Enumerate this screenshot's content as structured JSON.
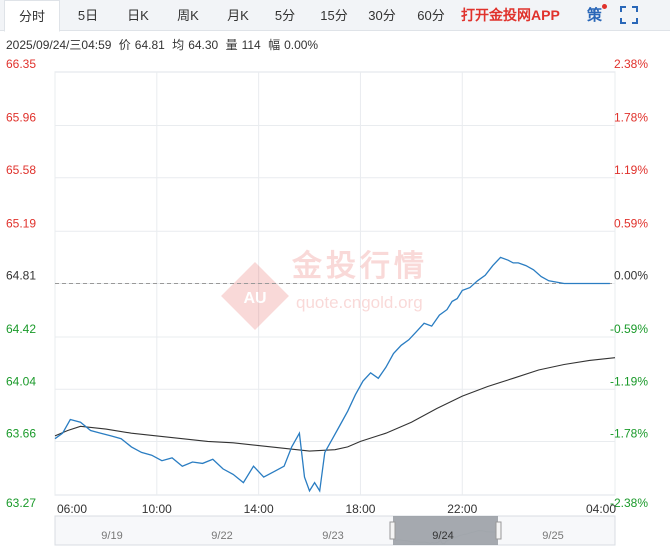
{
  "tabs": [
    {
      "label": "分时",
      "active": true
    },
    {
      "label": "5日",
      "active": false
    },
    {
      "label": "日K",
      "active": false
    },
    {
      "label": "周K",
      "active": false
    },
    {
      "label": "月K",
      "active": false
    },
    {
      "label": "5分",
      "active": false
    },
    {
      "label": "15分",
      "active": false
    },
    {
      "label": "30分",
      "active": false
    },
    {
      "label": "60分",
      "active": false
    }
  ],
  "brand_link": "打开金投网APP",
  "strategy_label": "策",
  "info": {
    "datetime": "2025/09/24/三04:59",
    "price_label": "价",
    "price": "64.81",
    "avg_label": "均",
    "avg": "64.30",
    "volume_label": "量",
    "volume": "114",
    "change_label": "幅",
    "change": "0.00%"
  },
  "watermark": {
    "logo_text": "AU",
    "name": "金投行情",
    "url": "quote.cngold.org"
  },
  "colors": {
    "price_line": "#2a7dc2",
    "avg_line": "#333333",
    "up": "#e0322c",
    "down": "#1a9a2a",
    "neutral": "#333333",
    "grid": "#e9ecef"
  },
  "chart_data": {
    "type": "line",
    "reference_price": 64.81,
    "ylim": [
      63.27,
      66.35
    ],
    "y_ticks_left": [
      "66.35",
      "65.96",
      "65.58",
      "65.19",
      "64.81",
      "64.42",
      "64.04",
      "63.66",
      "63.27"
    ],
    "y_ticks_right": [
      "2.38%",
      "1.78%",
      "1.19%",
      "0.59%",
      "0.00%",
      "-0.59%",
      "-1.19%",
      "-1.78%",
      "-2.38%"
    ],
    "xlim": [
      6,
      28
    ],
    "x_ticks": [
      "06:00",
      "10:00",
      "14:00",
      "18:00",
      "22:00",
      "04:00"
    ],
    "series": [
      {
        "role": "price",
        "x": [
          6.0,
          6.3,
          6.6,
          7.0,
          7.4,
          7.8,
          8.2,
          8.6,
          9.0,
          9.4,
          9.8,
          10.2,
          10.6,
          11.0,
          11.4,
          11.8,
          12.2,
          12.6,
          13.0,
          13.4,
          13.8,
          14.2,
          14.6,
          15.0,
          15.3,
          15.6,
          15.8,
          16.0,
          16.2,
          16.4,
          16.6,
          16.9,
          17.2,
          17.5,
          17.8,
          18.1,
          18.4,
          18.7,
          19.0,
          19.3,
          19.6,
          19.9,
          20.2,
          20.5,
          20.8,
          21.1,
          21.4,
          21.6,
          21.8,
          22.0,
          22.3,
          22.6,
          22.9,
          23.2,
          23.5,
          23.8,
          24.0,
          24.2,
          24.5,
          24.8,
          25.1,
          25.4,
          25.7,
          26.0,
          26.3,
          26.6,
          26.9,
          27.2,
          27.5,
          27.8
        ],
        "values": [
          63.68,
          63.72,
          63.82,
          63.8,
          63.74,
          63.72,
          63.7,
          63.68,
          63.62,
          63.58,
          63.56,
          63.52,
          63.54,
          63.48,
          63.51,
          63.5,
          63.53,
          63.46,
          63.42,
          63.36,
          63.48,
          63.4,
          63.44,
          63.48,
          63.62,
          63.72,
          63.4,
          63.3,
          63.36,
          63.3,
          63.58,
          63.68,
          63.78,
          63.88,
          64.0,
          64.1,
          64.16,
          64.12,
          64.2,
          64.3,
          64.36,
          64.4,
          64.46,
          64.52,
          64.5,
          64.58,
          64.62,
          64.68,
          64.7,
          64.76,
          64.78,
          64.83,
          64.87,
          64.94,
          65.0,
          64.98,
          64.96,
          64.96,
          64.94,
          64.91,
          64.86,
          64.83,
          64.82,
          64.81,
          64.81,
          64.81,
          64.81,
          64.81,
          64.81,
          64.81
        ]
      },
      {
        "role": "average",
        "x": [
          6.0,
          6.5,
          7.0,
          8.0,
          9.0,
          10.0,
          11.0,
          12.0,
          13.0,
          14.0,
          15.0,
          16.0,
          17.0,
          17.5,
          18.0,
          19.0,
          20.0,
          21.0,
          22.0,
          23.0,
          24.0,
          25.0,
          26.0,
          27.0,
          28.0
        ],
        "values": [
          63.7,
          63.74,
          63.77,
          63.75,
          63.72,
          63.7,
          63.68,
          63.66,
          63.65,
          63.63,
          63.61,
          63.59,
          63.6,
          63.62,
          63.66,
          63.72,
          63.8,
          63.9,
          63.99,
          64.06,
          64.12,
          64.18,
          64.22,
          64.25,
          64.27
        ]
      }
    ]
  },
  "navigator": {
    "labels": [
      "9/19",
      "9/22",
      "9/23",
      "9/24",
      "9/25"
    ],
    "selected_label": "9/24"
  }
}
